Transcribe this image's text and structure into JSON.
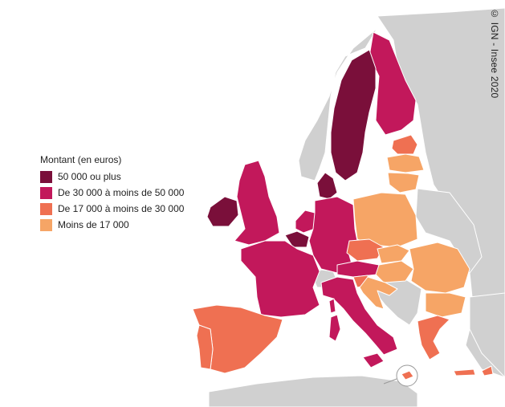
{
  "legend": {
    "title": "Montant (en euros)",
    "classes": [
      {
        "label": "50 000 ou plus",
        "color": "#7a0f3a"
      },
      {
        "label": "De 30 000 à moins de 50 000",
        "color": "#c2185b"
      },
      {
        "label": "De 17 000 à moins de 30 000",
        "color": "#ef7052"
      },
      {
        "label": "Moins de 17 000",
        "color": "#f6a566"
      }
    ]
  },
  "credit": "© IGN - Insee 2020",
  "countries": {
    "sweden": "#7a0f3a",
    "denmark": "#7a0f3a",
    "ireland": "#7a0f3a",
    "belgium": "#7a0f3a",
    "luxembourg": "#7a0f3a",
    "finland": "#c2185b",
    "germany": "#c2185b",
    "france": "#c2185b",
    "netherlands": "#c2185b",
    "austria": "#c2185b",
    "italy": "#c2185b",
    "united_kingdom": "#c2185b",
    "spain": "#ef7052",
    "portugal": "#ef7052",
    "czechia": "#ef7052",
    "slovenia": "#ef7052",
    "estonia": "#ef7052",
    "greece": "#ef7052",
    "cyprus": "#ef7052",
    "malta": "#ef7052",
    "poland": "#f6a566",
    "latvia": "#f6a566",
    "lithuania": "#f6a566",
    "slovakia": "#f6a566",
    "hungary": "#f6a566",
    "romania": "#f6a566",
    "bulgaria": "#f6a566",
    "croatia": "#f6a566",
    "non_eu": "#d0d0d0"
  }
}
